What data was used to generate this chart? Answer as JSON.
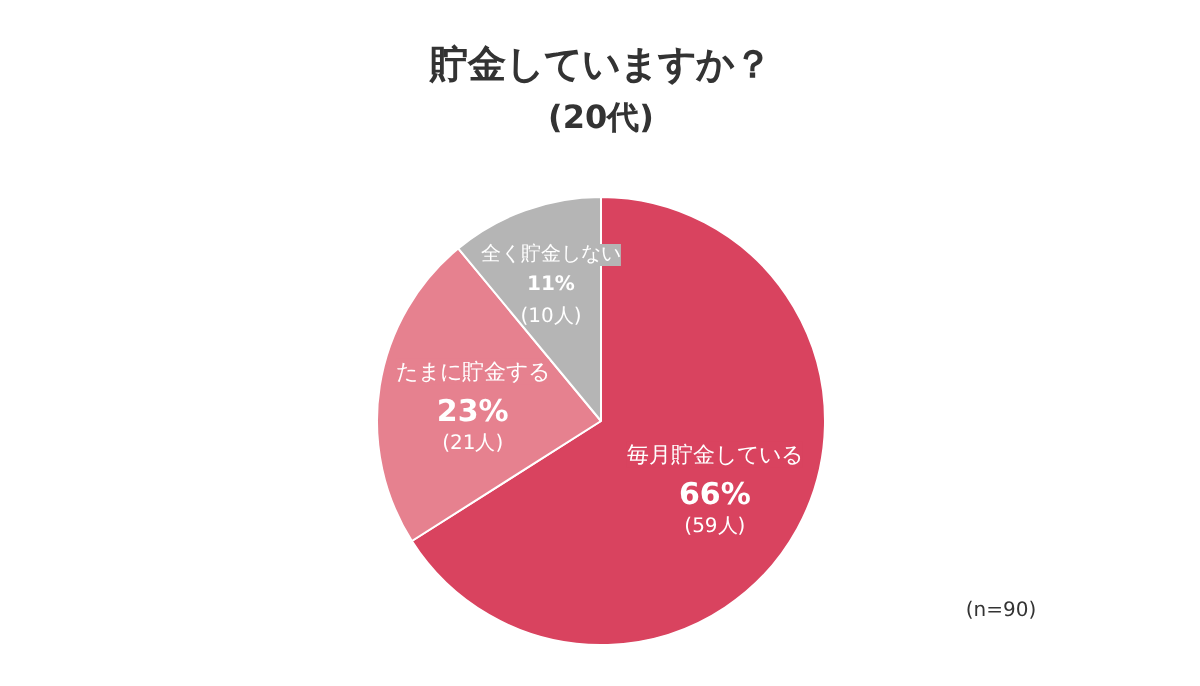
{
  "chart_data": {
    "type": "pie",
    "title": "貯金していますか？",
    "subtitle": "(20代)",
    "categories": [
      "毎月貯金している",
      "たまに貯金する",
      "全く貯金しない"
    ],
    "values": [
      66,
      23,
      11
    ],
    "colors": [
      "#d9435f",
      "#e6818f",
      "#b5b5b5"
    ],
    "value_labels": [
      "66%\n(59人)",
      "23%\n(21人)",
      "11%\n(10人)"
    ],
    "annotations": [
      "(n=90)"
    ]
  }
}
